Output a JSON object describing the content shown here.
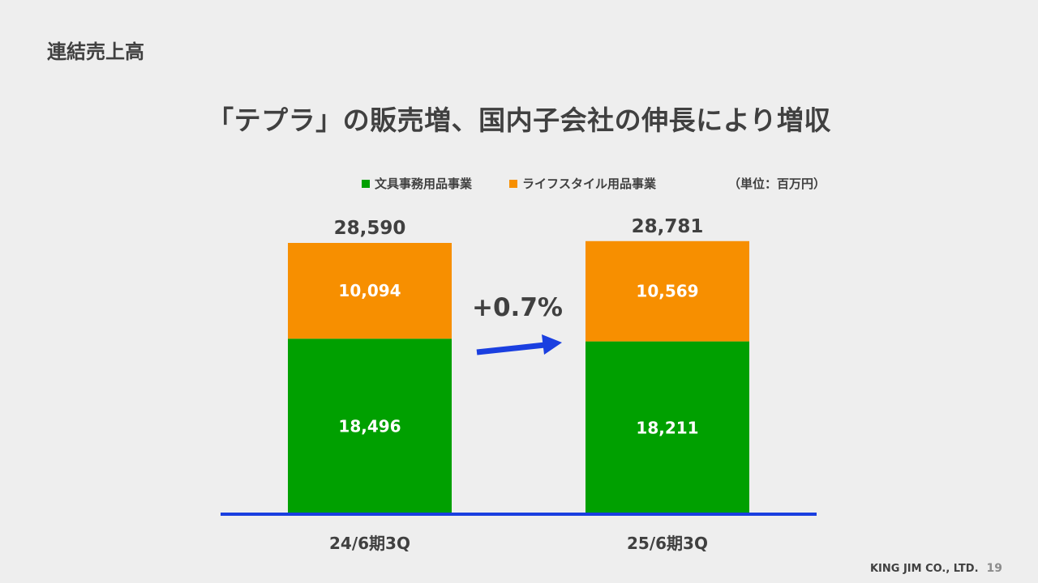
{
  "slide": {
    "section_title": "連結売上高",
    "headline": "「テプラ」の販売増、国内子会社の伸長により増収",
    "unit_note": "（単位：百万円）",
    "company": "KING JIM CO., LTD.",
    "page_number": "19"
  },
  "chart_data": {
    "type": "bar",
    "stacked": true,
    "categories": [
      "24/6期3Q",
      "25/6期3Q"
    ],
    "series": [
      {
        "name": "文具事務用品事業",
        "color": "#00a000",
        "values": [
          18496,
          18211
        ],
        "labels": [
          "18,496",
          "18,211"
        ]
      },
      {
        "name": "ライフスタイル用品事業",
        "color": "#f78f00",
        "values": [
          10094,
          10569
        ],
        "labels": [
          "10,094",
          "10,569"
        ]
      }
    ],
    "totals": [
      28590,
      28781
    ],
    "total_labels": [
      "28,590",
      "28,781"
    ],
    "annotation": "+0.7%",
    "baseline_color": "#1a3fe0",
    "arrow_color": "#1a3fe0",
    "ylim": [
      0,
      30000
    ]
  }
}
